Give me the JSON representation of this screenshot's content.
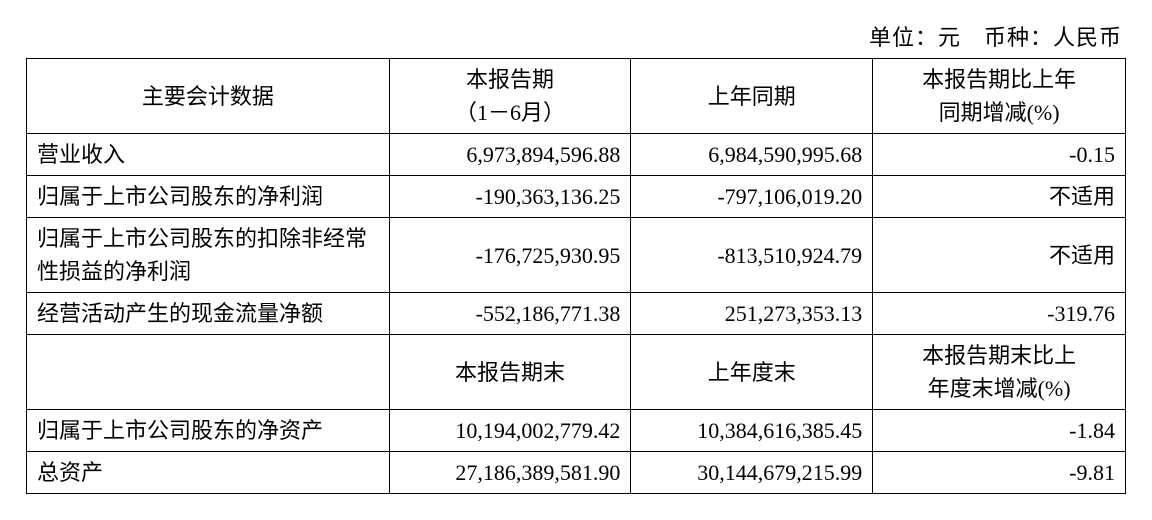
{
  "meta": {
    "unit_label": "单位：元",
    "spacer": "　",
    "currency_label": "币种：人民币"
  },
  "table": {
    "headers1": {
      "col0": "主要会计数据",
      "col1_line1": "本报告期",
      "col1_line2": "（1－6月）",
      "col2": "上年同期",
      "col3_line1": "本报告期比上年",
      "col3_line2": "同期增减(%)"
    },
    "rows1": [
      {
        "label": "营业收入",
        "c1": "6,973,894,596.88",
        "c2": "6,984,590,995.68",
        "c3": "-0.15",
        "c3_na": false
      },
      {
        "label": "归属于上市公司股东的净利润",
        "c1": "-190,363,136.25",
        "c2": "-797,106,019.20",
        "c3": "不适用",
        "c3_na": true
      },
      {
        "label": "归属于上市公司股东的扣除非经常性损益的净利润",
        "c1": "-176,725,930.95",
        "c2": "-813,510,924.79",
        "c3": "不适用",
        "c3_na": true
      },
      {
        "label": "经营活动产生的现金流量净额",
        "c1": "-552,186,771.38",
        "c2": "251,273,353.13",
        "c3": "-319.76",
        "c3_na": false
      }
    ],
    "headers2": {
      "col0": "",
      "col1": "本报告期末",
      "col2": "上年度末",
      "col3_line1": "本报告期末比上",
      "col3_line2": "年度末增减(%)"
    },
    "rows2": [
      {
        "label": "归属于上市公司股东的净资产",
        "c1": "10,194,002,779.42",
        "c2": "10,384,616,385.45",
        "c3": "-1.84"
      },
      {
        "label": "总资产",
        "c1": "27,186,389,581.90",
        "c2": "30,144,679,215.99",
        "c3": "-9.81"
      }
    ]
  },
  "style": {
    "font_size_pt": 16,
    "border_color": "#000000",
    "background_color": "#ffffff",
    "text_color": "#000000"
  }
}
